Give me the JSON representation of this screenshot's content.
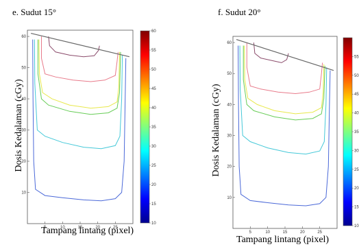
{
  "chart_data": [
    {
      "type": "contour",
      "title": "e. Sudut 15°",
      "xlabel": "Tampang lintang (pixel)",
      "ylabel": "Dosis Kedalaman (cGy)",
      "xticks": [
        5,
        10,
        15,
        20,
        25
      ],
      "yticks": [
        10,
        20,
        30,
        40,
        50,
        60
      ],
      "xlim": [
        0,
        30
      ],
      "ylim": [
        0,
        62
      ],
      "surface_line": {
        "x": [
          1,
          29
        ],
        "y": [
          61,
          53.5
        ]
      },
      "colorbar": {
        "range": [
          10,
          60
        ],
        "ticks": [
          10,
          15,
          20,
          25,
          30,
          35,
          40,
          45,
          50,
          55,
          60
        ]
      },
      "contours": [
        {
          "level": 10,
          "color": "#4a68d8",
          "points": [
            [
              1.5,
              59
            ],
            [
              1.6,
              40
            ],
            [
              1.8,
              20
            ],
            [
              2.3,
              11
            ],
            [
              5,
              9
            ],
            [
              10,
              8.3
            ],
            [
              16,
              7.6
            ],
            [
              21,
              7.3
            ],
            [
              25,
              8
            ],
            [
              26.8,
              10
            ],
            [
              27.5,
              20
            ],
            [
              27.8,
              40
            ],
            [
              28,
              53
            ]
          ]
        },
        {
          "level": 25,
          "color": "#44c8d8",
          "points": [
            [
              2,
              59
            ],
            [
              2.1,
              45
            ],
            [
              2.8,
              30
            ],
            [
              5,
              28
            ],
            [
              10,
              26
            ],
            [
              16,
              24.5
            ],
            [
              21,
              24
            ],
            [
              25,
              25
            ],
            [
              26.3,
              28
            ],
            [
              26.8,
              40
            ],
            [
              27,
              54
            ]
          ]
        },
        {
          "level": 35,
          "color": "#66cc55",
          "points": [
            [
              3,
              59
            ],
            [
              3,
              48
            ],
            [
              4,
              40
            ],
            [
              6,
              38
            ],
            [
              12,
              36
            ],
            [
              18,
              35
            ],
            [
              23,
              35.5
            ],
            [
              25.5,
              37
            ],
            [
              26.2,
              42
            ],
            [
              26.5,
              55
            ]
          ]
        },
        {
          "level": 40,
          "color": "#e8e84a",
          "points": [
            [
              3.3,
              59
            ],
            [
              3.4,
              48
            ],
            [
              4.3,
              42
            ],
            [
              7,
              40
            ],
            [
              12,
              38
            ],
            [
              18,
              37
            ],
            [
              23,
              37.5
            ],
            [
              25.5,
              39
            ],
            [
              26,
              44
            ],
            [
              26.2,
              55
            ]
          ]
        },
        {
          "level": 50,
          "color": "#e87a8a",
          "points": [
            [
              4,
              60
            ],
            [
              4,
              53
            ],
            [
              5,
              48
            ],
            [
              8,
              47
            ],
            [
              13,
              46
            ],
            [
              18,
              45.5
            ],
            [
              22,
              46
            ],
            [
              25,
              47.5
            ],
            [
              25.5,
              52
            ],
            [
              25.8,
              55
            ]
          ]
        },
        {
          "level": 58,
          "color": "#8a4a6a",
          "points": [
            [
              6,
              60
            ],
            [
              6.3,
              57
            ],
            [
              8,
              55
            ],
            [
              12,
              54
            ],
            [
              16,
              53.5
            ],
            [
              19,
              53.8
            ],
            [
              20.2,
              55.5
            ],
            [
              20.5,
              57
            ]
          ]
        }
      ]
    },
    {
      "type": "contour",
      "title": "f. Sudut 20°",
      "xlabel": "Tampang lintang (pixel)",
      "ylabel": "Dosis Kedalaman (cGy)",
      "xticks": [
        5,
        10,
        15,
        20,
        25
      ],
      "yticks": [
        10,
        20,
        30,
        40,
        50,
        60
      ],
      "xlim": [
        0,
        30
      ],
      "ylim": [
        0,
        62
      ],
      "surface_line": {
        "x": [
          1,
          29
        ],
        "y": [
          61,
          51
        ]
      },
      "colorbar": {
        "range": [
          10,
          60
        ],
        "ticks": [
          10,
          15,
          20,
          25,
          30,
          35,
          40,
          45,
          50,
          55
        ]
      },
      "contours": [
        {
          "level": 10,
          "color": "#4a68d8",
          "points": [
            [
              1.5,
              59
            ],
            [
              1.6,
              40
            ],
            [
              1.8,
              20
            ],
            [
              2.3,
              11
            ],
            [
              5,
              9
            ],
            [
              10,
              8.3
            ],
            [
              16,
              7.6
            ],
            [
              21,
              7.3
            ],
            [
              25,
              8
            ],
            [
              26.8,
              10
            ],
            [
              27.5,
              20
            ],
            [
              27.8,
              40
            ],
            [
              28,
              51
            ]
          ]
        },
        {
          "level": 25,
          "color": "#44c8d8",
          "points": [
            [
              2,
              59
            ],
            [
              2.1,
              45
            ],
            [
              2.8,
              30
            ],
            [
              5,
              28
            ],
            [
              10,
              26
            ],
            [
              16,
              24.5
            ],
            [
              21,
              24
            ],
            [
              25,
              25
            ],
            [
              26.3,
              28
            ],
            [
              26.8,
              40
            ],
            [
              27,
              52
            ]
          ]
        },
        {
          "level": 35,
          "color": "#66cc55",
          "points": [
            [
              3,
              59
            ],
            [
              3,
              48
            ],
            [
              4,
              40
            ],
            [
              6,
              38
            ],
            [
              12,
              36
            ],
            [
              18,
              35
            ],
            [
              23,
              35.5
            ],
            [
              25.5,
              37
            ],
            [
              26.2,
              42
            ],
            [
              26.5,
              52.5
            ]
          ]
        },
        {
          "level": 40,
          "color": "#e8e84a",
          "points": [
            [
              3.3,
              59
            ],
            [
              3.4,
              48
            ],
            [
              4.3,
              42
            ],
            [
              7,
              40
            ],
            [
              12,
              38
            ],
            [
              18,
              37
            ],
            [
              23,
              37.5
            ],
            [
              25.5,
              39
            ],
            [
              26,
              44
            ],
            [
              26.2,
              53
            ]
          ]
        },
        {
          "level": 50,
          "color": "#e87a8a",
          "points": [
            [
              4,
              60
            ],
            [
              4,
              52
            ],
            [
              5,
              46
            ],
            [
              8,
              45
            ],
            [
              13,
              44
            ],
            [
              18,
              43.5
            ],
            [
              22,
              44
            ],
            [
              25,
              45
            ],
            [
              25.5,
              50
            ],
            [
              25.8,
              53.5
            ]
          ]
        },
        {
          "level": 58,
          "color": "#8a4a6a",
          "points": [
            [
              6,
              60
            ],
            [
              6.3,
              56.5
            ],
            [
              8,
              55
            ],
            [
              12,
              54
            ],
            [
              14,
              53.5
            ],
            [
              15.5,
              54.5
            ],
            [
              16,
              56.5
            ]
          ]
        }
      ]
    }
  ]
}
